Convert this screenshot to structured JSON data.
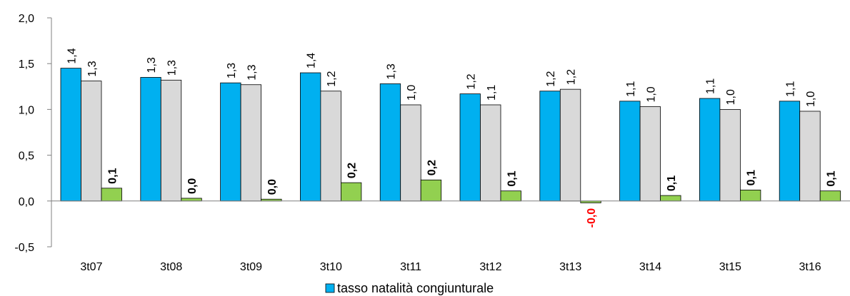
{
  "chart_data": {
    "type": "bar",
    "categories": [
      "3t07",
      "3t08",
      "3t09",
      "3t10",
      "3t11",
      "3t12",
      "3t13",
      "3t14",
      "3t15",
      "3t16"
    ],
    "series": [
      {
        "name": "tasso natalità congiunturale",
        "color": "#00B0F0",
        "values": [
          1.45,
          1.35,
          1.29,
          1.4,
          1.28,
          1.17,
          1.2,
          1.09,
          1.12,
          1.09
        ],
        "labels": [
          "1,4",
          "1,3",
          "1,3",
          "1,4",
          "1,3",
          "1,2",
          "1,2",
          "1,1",
          "1,1",
          "1,1"
        ]
      },
      {
        "color": "#D9D9D9",
        "values": [
          1.31,
          1.32,
          1.27,
          1.2,
          1.05,
          1.05,
          1.22,
          1.03,
          1.0,
          0.98
        ],
        "labels": [
          "1,3",
          "1,3",
          "1,3",
          "1,2",
          "1,0",
          "1,1",
          "1,2",
          "1,0",
          "1,0",
          "1,0"
        ]
      },
      {
        "color": "#92D050",
        "values": [
          0.14,
          0.03,
          0.02,
          0.2,
          0.23,
          0.11,
          -0.02,
          0.06,
          0.12,
          0.11
        ],
        "labels": [
          "0,1",
          "0,0",
          "0,0",
          "0,2",
          "0,2",
          "0,1",
          "-0,0",
          "0,1",
          "0,1",
          "0,1"
        ],
        "label_bold": true
      }
    ],
    "negative_label_color": "#FF0000",
    "ylim": [
      -0.5,
      2.0
    ],
    "yticks": [
      -0.5,
      0.0,
      0.5,
      1.0,
      1.5,
      2.0
    ],
    "ytick_labels": [
      "-0,5",
      "0,0",
      "0,5",
      "1,0",
      "1,5",
      "2,0"
    ],
    "grid": false,
    "legend_position": "bottom",
    "title": "",
    "xlabel": "",
    "ylabel": ""
  }
}
